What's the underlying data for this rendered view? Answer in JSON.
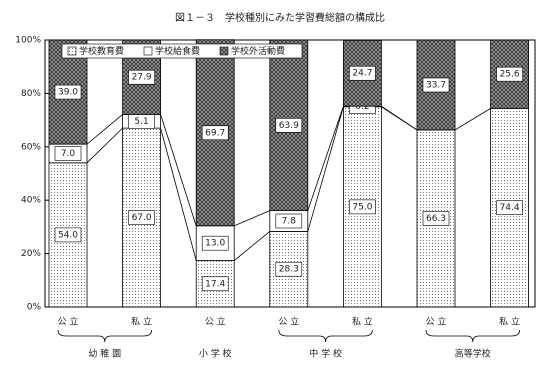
{
  "chart_data": {
    "type": "stacked-bar",
    "title": "図１－３　学校種別にみた学習費総額の構成比",
    "groups": [
      {
        "label": "幼 稚 園",
        "categories": [
          "公 立",
          "私 立"
        ]
      },
      {
        "label": "小 学 校",
        "categories": [
          "公 立"
        ]
      },
      {
        "label": "中 学 校",
        "categories": [
          "公 立",
          "私 立"
        ]
      },
      {
        "label": "高等学校",
        "categories": [
          "公 立",
          "私 立"
        ]
      }
    ],
    "series": [
      {
        "name": "学校教育費",
        "values": [
          54.0,
          67.0,
          17.4,
          28.3,
          75.0,
          66.3,
          74.4
        ],
        "value_labels": [
          "54.0",
          "67.0",
          "17.4",
          "28.3",
          "75.0",
          "66.3",
          "74.4"
        ]
      },
      {
        "name": "学校給食費",
        "values": [
          7.0,
          5.1,
          13.0,
          7.8,
          0.2,
          null,
          null
        ],
        "value_labels": [
          "7.0",
          "5.1",
          "13.0",
          "7.8",
          "0.2",
          null,
          null
        ]
      },
      {
        "name": "学校外活動費",
        "values": [
          39.0,
          27.9,
          69.7,
          63.9,
          24.7,
          33.7,
          25.6
        ],
        "value_labels": [
          "39.0",
          "27.9",
          "69.7",
          "63.9",
          "24.7",
          "33.7",
          "25.6"
        ]
      }
    ],
    "ylim": [
      0,
      100
    ],
    "yticks": [
      {
        "value": 0,
        "label": "0%"
      },
      {
        "value": 20,
        "label": "20%"
      },
      {
        "value": 40,
        "label": "40%"
      },
      {
        "value": 60,
        "label": "60%"
      },
      {
        "value": 80,
        "label": "80%"
      },
      {
        "value": 100,
        "label": "100%"
      }
    ]
  }
}
